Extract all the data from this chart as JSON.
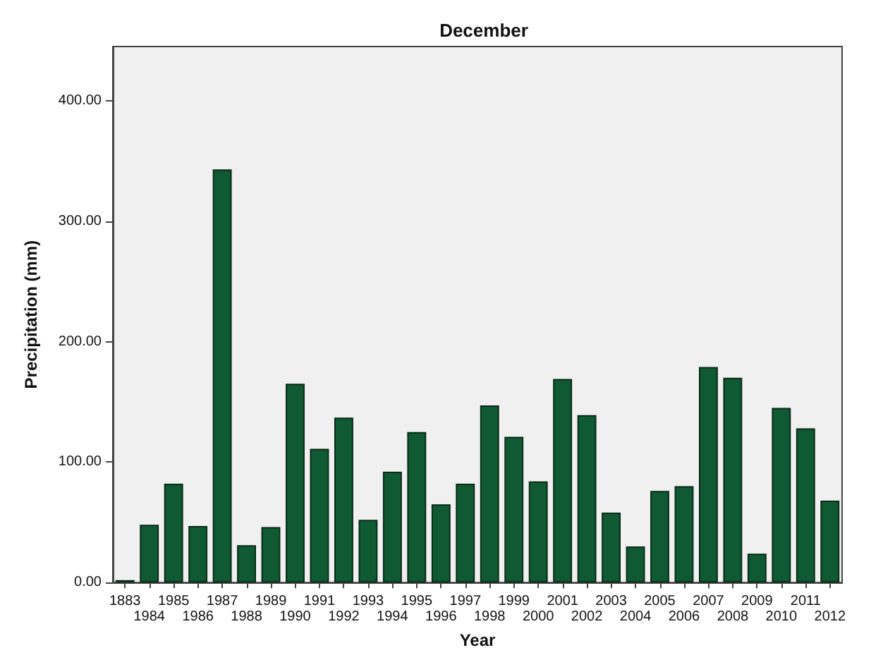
{
  "chart_data": {
    "type": "bar",
    "title": "December",
    "xlabel": "Year",
    "ylabel": "Precipitation (mm)",
    "categories": [
      "1883",
      "1984",
      "1985",
      "1986",
      "1987",
      "1988",
      "1989",
      "1990",
      "1991",
      "1992",
      "1993",
      "1994",
      "1995",
      "1996",
      "1997",
      "1998",
      "1999",
      "2000",
      "2001",
      "2002",
      "2003",
      "2004",
      "2005",
      "2006",
      "2007",
      "2008",
      "2009",
      "2010",
      "2011",
      "2012"
    ],
    "values": [
      2,
      48,
      82,
      47,
      343,
      31,
      46,
      165,
      111,
      137,
      52,
      92,
      125,
      65,
      82,
      147,
      121,
      84,
      169,
      139,
      58,
      30,
      76,
      80,
      179,
      170,
      24,
      145,
      128,
      68
    ],
    "color": "#0f5a32",
    "ylim": [
      0,
      445
    ],
    "yticks": [
      {
        "value": 0,
        "label": "0.00"
      },
      {
        "value": 100,
        "label": "100.00"
      },
      {
        "value": 200,
        "label": "200.00"
      },
      {
        "value": 300,
        "label": "300.00"
      },
      {
        "value": 400,
        "label": "400.00"
      }
    ],
    "grid": false
  }
}
